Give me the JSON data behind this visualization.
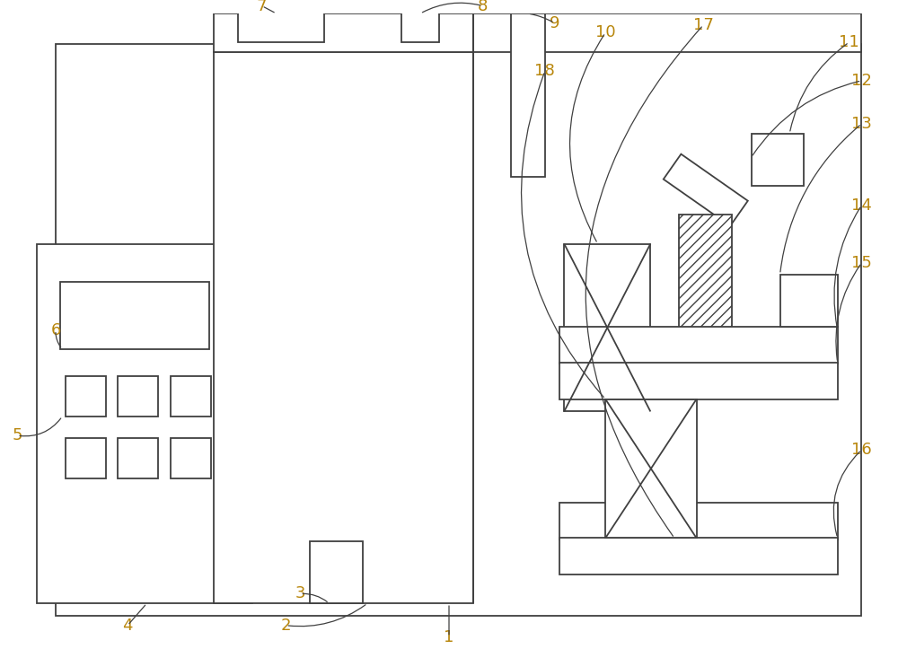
{
  "bg_color": "#ffffff",
  "line_color": "#404040",
  "lw": 1.3,
  "label_color": "#b8860b",
  "label_fs": 13,
  "figsize": [
    10.0,
    7.23
  ],
  "dpi": 100
}
